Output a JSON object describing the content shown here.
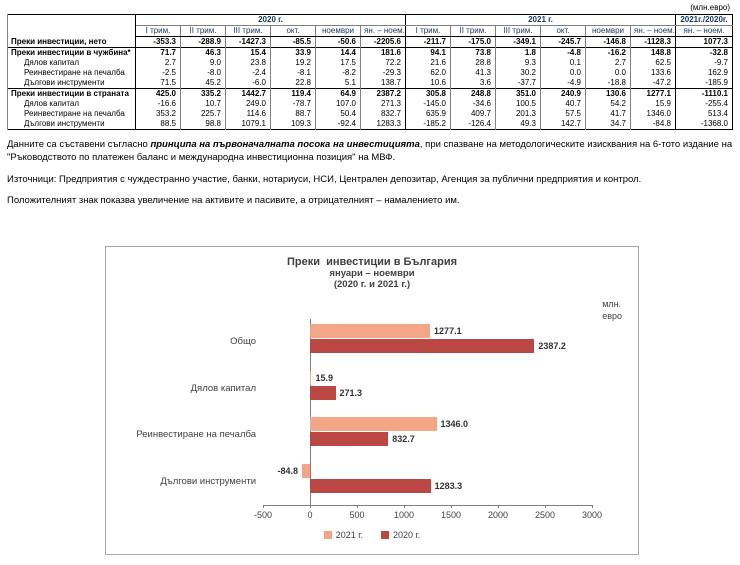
{
  "unit_note": "(млн.евро)",
  "table": {
    "group_2020": "2020 г.",
    "group_2021": "2021 г.",
    "group_ratio": "2021г./2020г.",
    "sub_headers_2020": [
      "I трим.",
      "II трим.",
      "III трим.",
      "окт.",
      "ноември",
      "ян. – ноем."
    ],
    "sub_headers_2021": [
      "I трим.",
      "II трим.",
      "III трим.",
      "окт.",
      "ноември",
      "ян. – ноем."
    ],
    "sub_header_ratio": "ян. – ноем.",
    "rows": [
      {
        "label": "Преки инвестиции, нето",
        "style": "bold",
        "section_start": false,
        "values": [
          "-353.3",
          "-288.9",
          "-1427.3",
          "-85.5",
          "-50.6",
          "-2205.6",
          "-211.7",
          "-175.0",
          "-349.1",
          "-245.7",
          "-146.8",
          "-1128.3",
          "1077.3"
        ]
      },
      {
        "label": "Преки инвестиции в чужбина*",
        "style": "bold",
        "section_start": true,
        "values": [
          "71.7",
          "46.3",
          "15.4",
          "33.9",
          "14.4",
          "181.6",
          "94.1",
          "73.8",
          "1.8",
          "-4.8",
          "-16.2",
          "148.8",
          "-32.8"
        ]
      },
      {
        "label": "Дялов капитал",
        "style": "indent",
        "section_start": false,
        "values": [
          "2.7",
          "9.0",
          "23.8",
          "19.2",
          "17.5",
          "72.2",
          "21.6",
          "28.8",
          "9.3",
          "0.1",
          "2.7",
          "62.5",
          "-9.7"
        ]
      },
      {
        "label": "Реинвестиране на печалба",
        "style": "indent",
        "section_start": false,
        "values": [
          "-2.5",
          "-8.0",
          "-2.4",
          "-8.1",
          "-8.2",
          "-29.3",
          "62.0",
          "41.3",
          "30.2",
          "0.0",
          "0.0",
          "133.6",
          "162.9"
        ]
      },
      {
        "label": "Дългови инструменти",
        "style": "indent",
        "section_start": false,
        "values": [
          "71.5",
          "45.2",
          "-6.0",
          "22.8",
          "5.1",
          "138.7",
          "10.6",
          "3.6",
          "-37.7",
          "-4.9",
          "-18.8",
          "-47.2",
          "-185.9"
        ]
      },
      {
        "label": "Преки инвестиции в страната",
        "style": "bold",
        "section_start": true,
        "values": [
          "425.0",
          "335.2",
          "1442.7",
          "119.4",
          "64.9",
          "2387.2",
          "305.8",
          "248.8",
          "351.0",
          "240.9",
          "130.6",
          "1277.1",
          "-1110.1"
        ]
      },
      {
        "label": "Дялов капитал",
        "style": "indent",
        "section_start": false,
        "values": [
          "-16.6",
          "10.7",
          "249.0",
          "-78.7",
          "107.0",
          "271.3",
          "-145.0",
          "-34.6",
          "100.5",
          "40.7",
          "54.2",
          "15.9",
          "-255.4"
        ]
      },
      {
        "label": "Реинвестиране на печалба",
        "style": "indent",
        "section_start": false,
        "values": [
          "353.2",
          "225.7",
          "114.6",
          "88.7",
          "50.4",
          "832.7",
          "635.9",
          "409.7",
          "201.3",
          "57.5",
          "41.7",
          "1346.0",
          "513.4"
        ]
      },
      {
        "label": "Дългови инструменти",
        "style": "indent",
        "section_start": false,
        "values": [
          "88.5",
          "98.8",
          "1079.1",
          "109.3",
          "-92.4",
          "1283.3",
          "-185.2",
          "-126.4",
          "49.3",
          "142.7",
          "34.7",
          "-84.8",
          "-1368.0"
        ]
      }
    ]
  },
  "notes": {
    "methodology_prefix": "Данните са съставени съгласно ",
    "methodology_italic": "принципа на първоначалната посока на инвестицията",
    "methodology_suffix": ", при спазване на методологическите изисквания на 6-тото издание на \"Ръководството по платежен баланс и международна инвестиционна позиция\" на МВФ.",
    "sources": "Източници: Предприятия с чуждестранно участие, банки, нотариуси, НСИ, Централен депозитар, Агенция за публични предприятия и контрол.",
    "sign_convention": "Положителният знак показва увеличение на активите и пасивите, а отрицателният – намалението им."
  },
  "chart_data": {
    "type": "bar",
    "orientation": "horizontal",
    "title": "Преки  инвестиции в България",
    "subtitle1": "януари – ноември",
    "subtitle2": "(2020 г. и 2021 г.)",
    "unit_line1": "млн.",
    "unit_line2": "евро",
    "categories": [
      "Общо",
      "Дялов капитал",
      "Реинвестиране на печалба",
      "Дългови инструменти"
    ],
    "series": [
      {
        "name": "2021 г.",
        "color": "#f2a587",
        "values": [
          1277.1,
          15.9,
          1346.0,
          -84.8
        ],
        "labels": [
          "1277.1",
          "15.9",
          "1346.0",
          "-84.8"
        ]
      },
      {
        "name": "2020 г.",
        "color": "#ba4741",
        "values": [
          2387.2,
          271.3,
          832.7,
          1283.3
        ],
        "labels": [
          "2387.2",
          "271.3",
          "832.7",
          "1283.3"
        ]
      }
    ],
    "xlim": [
      -500,
      3000
    ],
    "x_ticks": [
      -500,
      0,
      500,
      1000,
      1500,
      2000,
      2500,
      3000
    ],
    "grid": false,
    "legend_position": "bottom"
  }
}
